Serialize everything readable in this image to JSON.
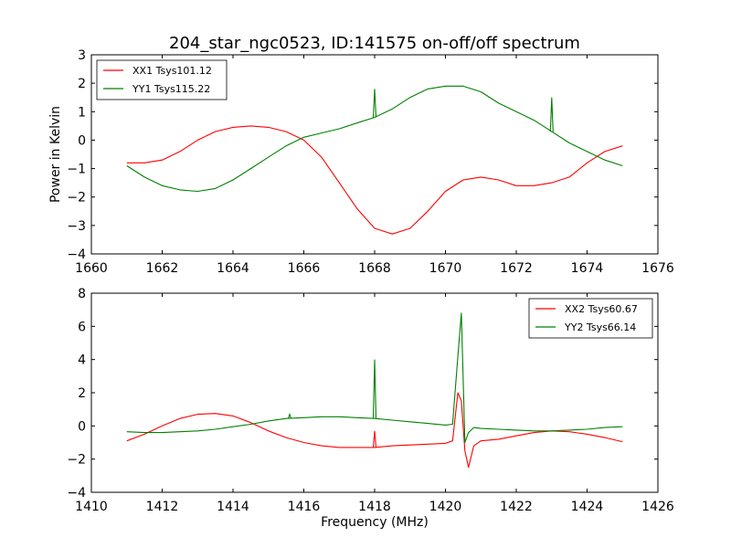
{
  "chart_data": [
    {
      "type": "line",
      "title": "204_star_ngc0523, ID:141575 on-off/off spectrum",
      "xlabel": "",
      "ylabel": "Power in Kelvin",
      "xlim": [
        1660,
        1676
      ],
      "ylim": [
        -4,
        3
      ],
      "xticks": [
        1660,
        1662,
        1664,
        1666,
        1668,
        1670,
        1672,
        1674,
        1676
      ],
      "yticks": [
        -4,
        -3,
        -2,
        -1,
        0,
        1,
        2,
        3
      ],
      "legend_position": "top-left",
      "series": [
        {
          "name": "XX1 Tsys101.12",
          "color": "#ff0000",
          "x": [
            1661.0,
            1661.5,
            1662.0,
            1662.5,
            1663.0,
            1663.5,
            1664.0,
            1664.5,
            1665.0,
            1665.5,
            1666.0,
            1666.5,
            1667.0,
            1667.5,
            1668.0,
            1668.5,
            1669.0,
            1669.5,
            1670.0,
            1670.5,
            1671.0,
            1671.5,
            1672.0,
            1672.5,
            1673.0,
            1673.5,
            1674.0,
            1674.5,
            1675.0
          ],
          "y": [
            -0.8,
            -0.8,
            -0.7,
            -0.4,
            0.0,
            0.3,
            0.45,
            0.5,
            0.45,
            0.3,
            0.0,
            -0.6,
            -1.5,
            -2.4,
            -3.1,
            -3.3,
            -3.1,
            -2.5,
            -1.8,
            -1.4,
            -1.3,
            -1.4,
            -1.6,
            -1.6,
            -1.5,
            -1.3,
            -0.8,
            -0.4,
            -0.2
          ]
        },
        {
          "name": "YY1 Tsys115.22",
          "color": "#008000",
          "x": [
            1661.0,
            1661.5,
            1662.0,
            1662.5,
            1663.0,
            1663.5,
            1664.0,
            1664.5,
            1665.0,
            1665.5,
            1666.0,
            1666.5,
            1667.0,
            1667.5,
            1668.0,
            1668.5,
            1669.0,
            1669.5,
            1670.0,
            1670.5,
            1671.0,
            1671.5,
            1672.0,
            1672.5,
            1673.0,
            1673.5,
            1674.0,
            1674.5,
            1675.0
          ],
          "y": [
            -0.9,
            -1.3,
            -1.6,
            -1.75,
            -1.8,
            -1.7,
            -1.4,
            -1.0,
            -0.6,
            -0.2,
            0.1,
            0.25,
            0.4,
            0.6,
            0.8,
            1.1,
            1.5,
            1.8,
            1.9,
            1.9,
            1.7,
            1.3,
            1.0,
            0.7,
            0.3,
            -0.1,
            -0.4,
            -0.7,
            -0.9
          ]
        }
      ],
      "annotations": [
        {
          "series": "YY1 Tsys115.22",
          "x": 1668.0,
          "y": 1.8,
          "kind": "spike"
        },
        {
          "series": "YY1 Tsys115.22",
          "x": 1673.0,
          "y": 1.5,
          "kind": "spike"
        }
      ]
    },
    {
      "type": "line",
      "title": "",
      "xlabel": "Frequency (MHz)",
      "ylabel": "",
      "xlim": [
        1410,
        1426
      ],
      "ylim": [
        -4,
        8
      ],
      "xticks": [
        1410,
        1412,
        1414,
        1416,
        1418,
        1420,
        1422,
        1424,
        1426
      ],
      "yticks": [
        -4,
        -2,
        0,
        2,
        4,
        6,
        8
      ],
      "legend_position": "top-right",
      "series": [
        {
          "name": "XX2 Tsys60.67",
          "color": "#ff0000",
          "x": [
            1411.0,
            1411.5,
            1412.0,
            1412.5,
            1413.0,
            1413.5,
            1414.0,
            1414.5,
            1415.0,
            1415.5,
            1416.0,
            1416.5,
            1417.0,
            1417.5,
            1418.0,
            1418.5,
            1419.0,
            1419.5,
            1420.0,
            1420.2,
            1420.35,
            1420.45,
            1420.55,
            1420.65,
            1420.8,
            1421.0,
            1421.5,
            1422.0,
            1422.5,
            1423.0,
            1423.5,
            1424.0,
            1424.5,
            1425.0
          ],
          "y": [
            -0.9,
            -0.5,
            0.0,
            0.45,
            0.7,
            0.75,
            0.6,
            0.2,
            -0.3,
            -0.7,
            -1.0,
            -1.2,
            -1.3,
            -1.3,
            -1.3,
            -1.2,
            -1.15,
            -1.1,
            -1.05,
            -0.9,
            2.0,
            1.5,
            -1.5,
            -2.5,
            -1.2,
            -0.9,
            -0.8,
            -0.6,
            -0.4,
            -0.3,
            -0.35,
            -0.5,
            -0.7,
            -0.95
          ]
        },
        {
          "name": "YY2 Tsys66.14",
          "color": "#008000",
          "x": [
            1411.0,
            1411.5,
            1412.0,
            1412.5,
            1413.0,
            1413.5,
            1414.0,
            1414.5,
            1415.0,
            1415.5,
            1416.0,
            1416.5,
            1417.0,
            1417.5,
            1418.0,
            1418.5,
            1419.0,
            1419.5,
            1420.0,
            1420.2,
            1420.35,
            1420.45,
            1420.55,
            1420.65,
            1420.8,
            1421.0,
            1421.5,
            1422.0,
            1422.5,
            1423.0,
            1423.5,
            1424.0,
            1424.5,
            1425.0
          ],
          "y": [
            -0.35,
            -0.4,
            -0.4,
            -0.35,
            -0.3,
            -0.2,
            -0.05,
            0.1,
            0.3,
            0.45,
            0.5,
            0.55,
            0.55,
            0.5,
            0.45,
            0.35,
            0.25,
            0.15,
            0.05,
            0.1,
            4.2,
            6.8,
            -1.0,
            -0.4,
            -0.1,
            -0.15,
            -0.2,
            -0.25,
            -0.3,
            -0.3,
            -0.25,
            -0.2,
            -0.1,
            -0.05
          ]
        }
      ],
      "annotations": [
        {
          "series": "YY2 Tsys66.14",
          "x": 1418.0,
          "y": 4.0,
          "kind": "spike"
        },
        {
          "series": "YY2 Tsys66.14",
          "x": 1415.6,
          "y": 0.7,
          "kind": "spike"
        },
        {
          "series": "XX2 Tsys60.67",
          "x": 1418.0,
          "y": -0.3,
          "kind": "spike"
        }
      ]
    }
  ]
}
